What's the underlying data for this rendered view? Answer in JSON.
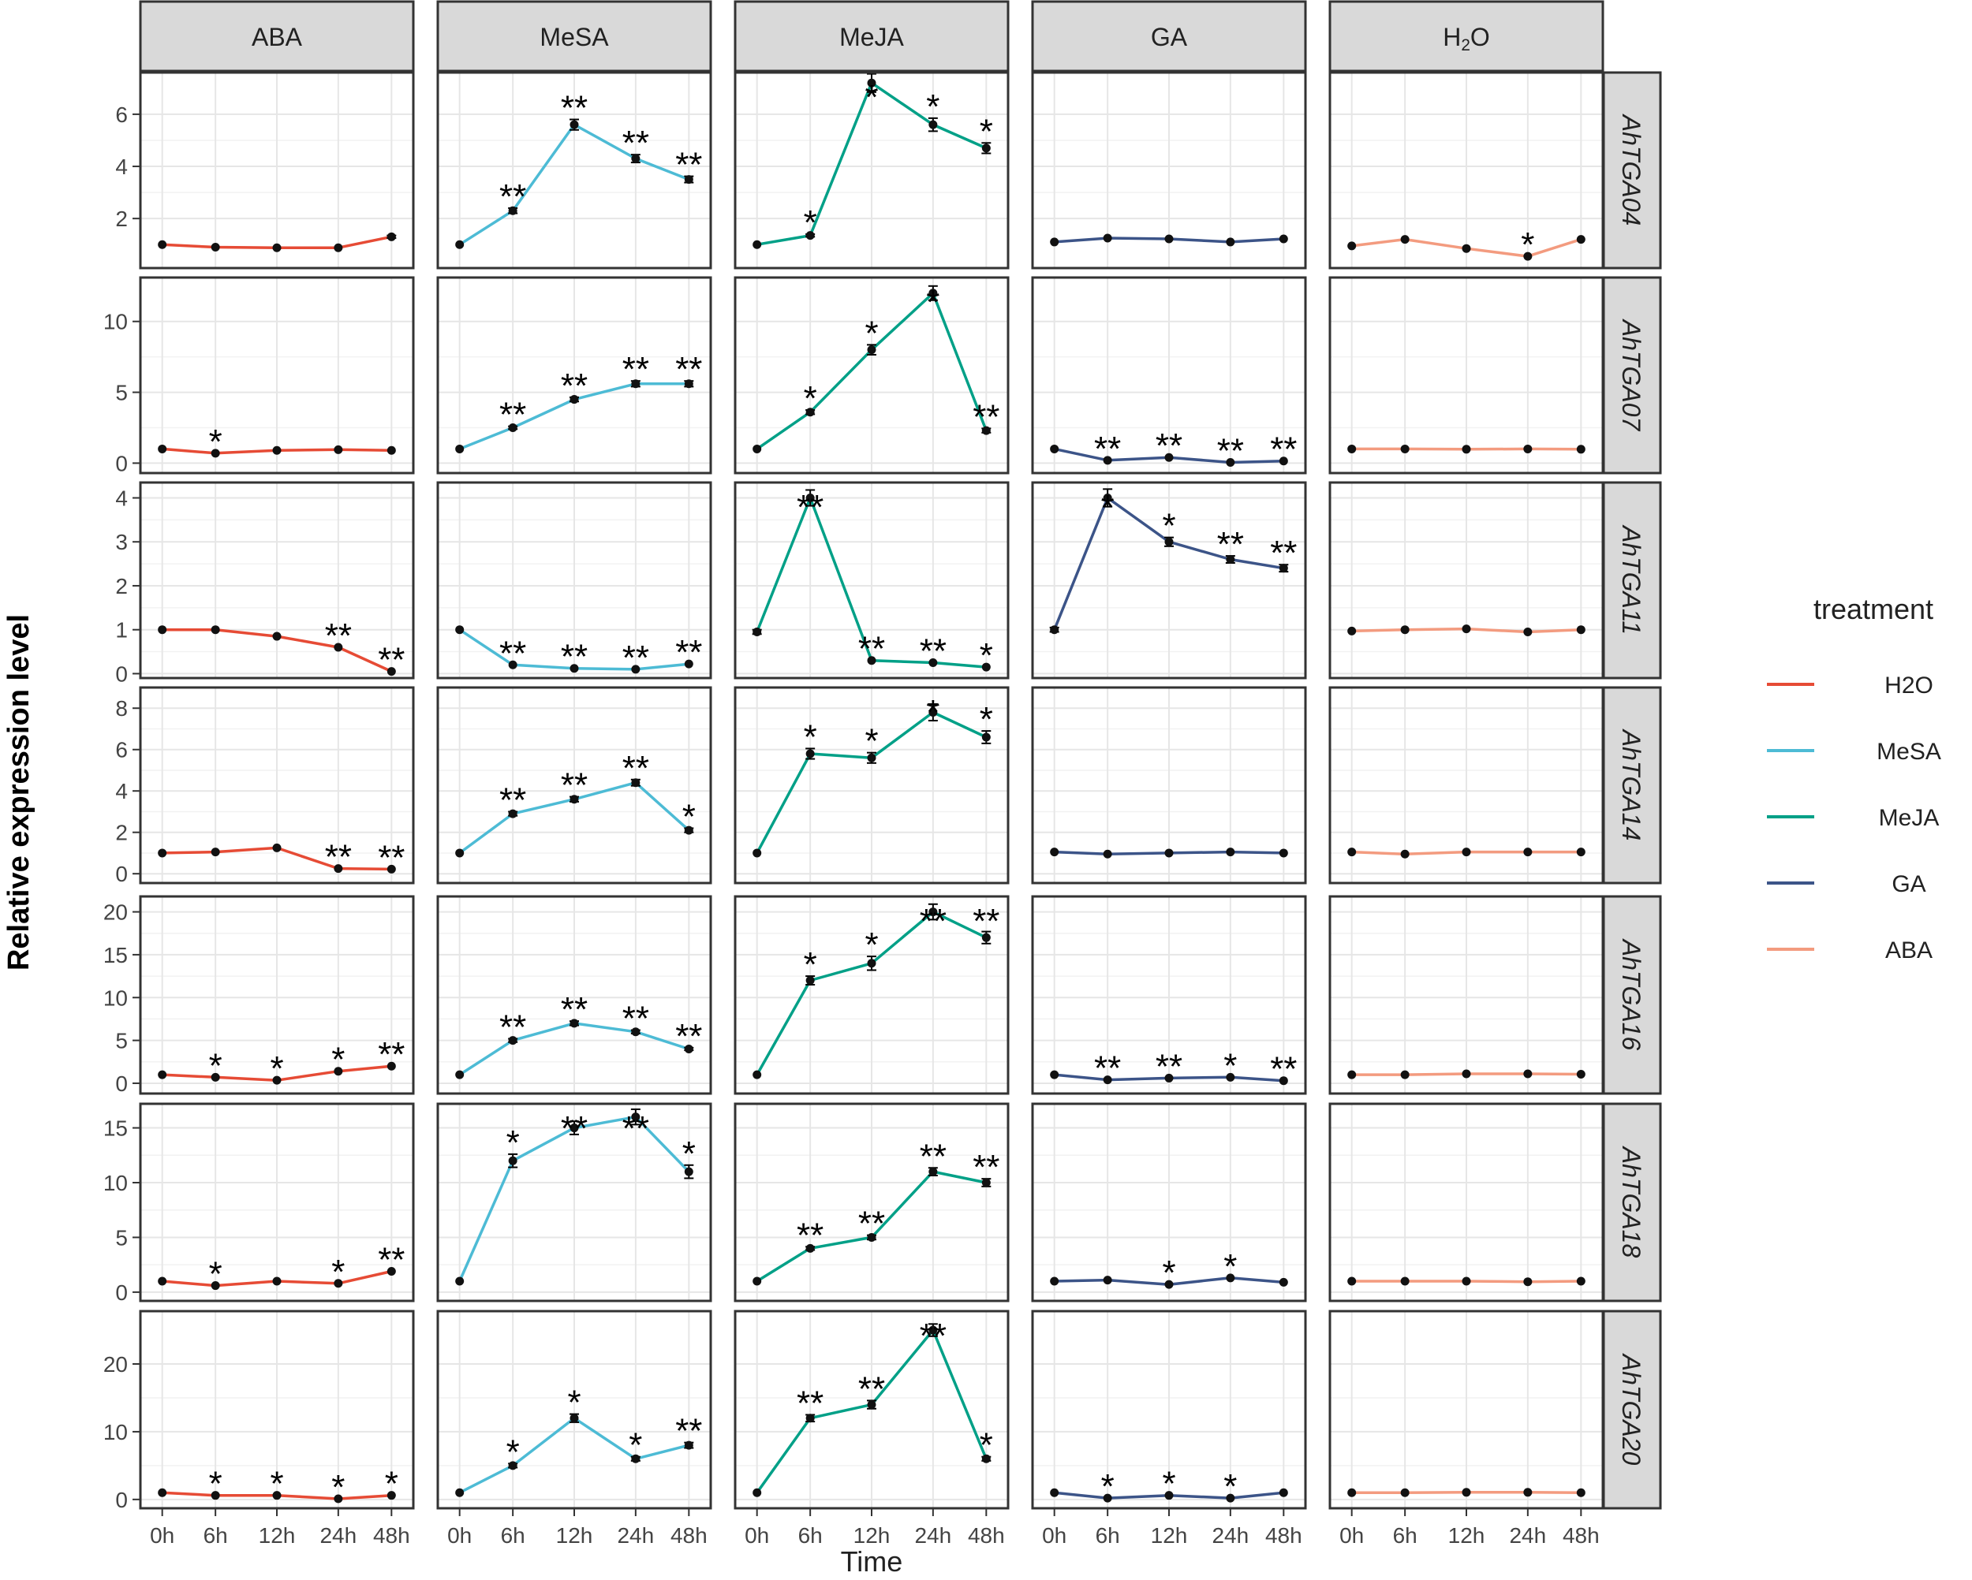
{
  "chart_data": {
    "type": "line",
    "layout": "facet-grid",
    "xlabel": "Time",
    "ylabel": "Relative expression level",
    "x": [
      "0h",
      "6h",
      "12h",
      "24h",
      "48h"
    ],
    "columns": [
      "ABA",
      "MeSA",
      "MeJA",
      "GA",
      "H2O"
    ],
    "rows": [
      "AhTGA04",
      "AhTGA07",
      "AhTGA11",
      "AhTGA14",
      "AhTGA16",
      "AhTGA18",
      "AhTGA20"
    ],
    "legend": {
      "title": "treatment",
      "placement": "right",
      "entries": [
        {
          "label": "H2O",
          "color": "#e64b35"
        },
        {
          "label": "MeSA",
          "color": "#4dbbd5"
        },
        {
          "label": "MeJA",
          "color": "#00a087"
        },
        {
          "label": "GA",
          "color": "#3c5488"
        },
        {
          "label": "ABA",
          "color": "#f39b7f"
        }
      ]
    },
    "column_colors": [
      "#e64b35",
      "#4dbbd5",
      "#00a087",
      "#3c5488",
      "#f39b7f"
    ],
    "row_axes": [
      {
        "ylim": [
          0.1,
          7.6
        ],
        "ticks": [
          2,
          4,
          6
        ]
      },
      {
        "ylim": [
          -0.7,
          13.1
        ],
        "ticks": [
          0,
          5,
          10
        ]
      },
      {
        "ylim": [
          -0.1,
          4.35
        ],
        "ticks": [
          0,
          1,
          2,
          3,
          4
        ]
      },
      {
        "ylim": [
          -0.45,
          9.0
        ],
        "ticks": [
          0,
          2,
          4,
          6,
          8
        ]
      },
      {
        "ylim": [
          -1.2,
          21.8
        ],
        "ticks": [
          0,
          5,
          10,
          15,
          20
        ]
      },
      {
        "ylim": [
          -0.8,
          17.2
        ],
        "ticks": [
          0,
          5,
          10,
          15
        ]
      },
      {
        "ylim": [
          -1.3,
          27.8
        ],
        "ticks": [
          0,
          10,
          20
        ]
      }
    ],
    "series": [
      [
        {
          "values": [
            1.0,
            0.9,
            0.88,
            0.88,
            1.3
          ],
          "errors": [
            0,
            0,
            0,
            0,
            0.05
          ],
          "marks": [
            "",
            "",
            "",
            "",
            ""
          ]
        },
        {
          "values": [
            1.0,
            2.3,
            5.6,
            4.3,
            3.5
          ],
          "errors": [
            0,
            0.1,
            0.2,
            0.15,
            0.12
          ],
          "marks": [
            "",
            "**",
            "**",
            "**",
            "**"
          ]
        },
        {
          "values": [
            1.0,
            1.35,
            7.2,
            5.6,
            4.7
          ],
          "errors": [
            0,
            0.05,
            0.35,
            0.25,
            0.2
          ],
          "marks": [
            "",
            "*",
            "*",
            "*",
            "*"
          ]
        },
        {
          "values": [
            1.1,
            1.25,
            1.22,
            1.1,
            1.22
          ],
          "errors": [
            0,
            0,
            0,
            0,
            0
          ],
          "marks": [
            "",
            "",
            "",
            "",
            ""
          ]
        },
        {
          "values": [
            0.95,
            1.2,
            0.85,
            0.55,
            1.2
          ],
          "errors": [
            0,
            0,
            0,
            0,
            0
          ],
          "marks": [
            "",
            "",
            "",
            "*",
            ""
          ]
        }
      ],
      [
        {
          "values": [
            1.0,
            0.7,
            0.9,
            0.95,
            0.9
          ],
          "errors": [
            0,
            0,
            0,
            0,
            0
          ],
          "marks": [
            "",
            "*",
            "",
            "",
            ""
          ]
        },
        {
          "values": [
            1.0,
            2.5,
            4.5,
            5.6,
            5.6
          ],
          "errors": [
            0,
            0.1,
            0.15,
            0.2,
            0.2
          ],
          "marks": [
            "",
            "**",
            "**",
            "**",
            "**"
          ]
        },
        {
          "values": [
            1.0,
            3.6,
            8.0,
            12.0,
            2.3
          ],
          "errors": [
            0,
            0.15,
            0.35,
            0.5,
            0.15
          ],
          "marks": [
            "",
            "*",
            "*",
            "*",
            "**"
          ]
        },
        {
          "values": [
            1.0,
            0.2,
            0.4,
            0.05,
            0.15
          ],
          "errors": [
            0,
            0,
            0,
            0,
            0
          ],
          "marks": [
            "",
            "**",
            "**",
            "**",
            "**"
          ]
        },
        {
          "values": [
            1.0,
            1.0,
            0.98,
            1.0,
            0.98
          ],
          "errors": [
            0,
            0,
            0,
            0,
            0
          ],
          "marks": [
            "",
            "",
            "",
            "",
            ""
          ]
        }
      ],
      [
        {
          "values": [
            1.0,
            1.0,
            0.85,
            0.6,
            0.05
          ],
          "errors": [
            0,
            0,
            0,
            0,
            0
          ],
          "marks": [
            "",
            "",
            "",
            "**",
            "**"
          ]
        },
        {
          "values": [
            1.0,
            0.2,
            0.12,
            0.1,
            0.22
          ],
          "errors": [
            0,
            0,
            0,
            0,
            0
          ],
          "marks": [
            "",
            "**",
            "**",
            "**",
            "**"
          ]
        },
        {
          "values": [
            0.95,
            4.0,
            0.3,
            0.25,
            0.15
          ],
          "errors": [
            0.05,
            0.18,
            0,
            0,
            0
          ],
          "marks": [
            "",
            "**",
            "**",
            "**",
            "*"
          ]
        },
        {
          "values": [
            1.0,
            4.0,
            3.0,
            2.6,
            2.4
          ],
          "errors": [
            0.05,
            0.2,
            0.1,
            0.08,
            0.08
          ],
          "marks": [
            "",
            "*",
            "*",
            "**",
            "**"
          ]
        },
        {
          "values": [
            0.97,
            1.0,
            1.02,
            0.95,
            1.0
          ],
          "errors": [
            0,
            0,
            0,
            0,
            0
          ],
          "marks": [
            "",
            "",
            "",
            "",
            ""
          ]
        }
      ],
      [
        {
          "values": [
            1.0,
            1.05,
            1.25,
            0.25,
            0.22
          ],
          "errors": [
            0,
            0,
            0,
            0,
            0
          ],
          "marks": [
            "",
            "",
            "",
            "**",
            "**"
          ]
        },
        {
          "values": [
            1.0,
            2.9,
            3.6,
            4.4,
            2.1
          ],
          "errors": [
            0,
            0.1,
            0.12,
            0.15,
            0.1
          ],
          "marks": [
            "",
            "**",
            "**",
            "**",
            "*"
          ]
        },
        {
          "values": [
            1.0,
            5.8,
            5.6,
            7.8,
            6.6
          ],
          "errors": [
            0,
            0.25,
            0.25,
            0.4,
            0.3
          ],
          "marks": [
            "",
            "*",
            "*",
            "*",
            "*"
          ]
        },
        {
          "values": [
            1.05,
            0.95,
            1.0,
            1.05,
            1.0
          ],
          "errors": [
            0,
            0,
            0,
            0,
            0
          ],
          "marks": [
            "",
            "",
            "",
            "",
            ""
          ]
        },
        {
          "values": [
            1.05,
            0.95,
            1.05,
            1.05,
            1.05
          ],
          "errors": [
            0,
            0,
            0,
            0,
            0
          ],
          "marks": [
            "",
            "",
            "",
            "",
            ""
          ]
        }
      ],
      [
        {
          "values": [
            1.0,
            0.7,
            0.35,
            1.4,
            2.0
          ],
          "errors": [
            0,
            0,
            0,
            0,
            0
          ],
          "marks": [
            "",
            "*",
            "*",
            "*",
            "**"
          ]
        },
        {
          "values": [
            1.0,
            5.0,
            7.0,
            6.0,
            4.0
          ],
          "errors": [
            0,
            0.2,
            0.25,
            0.2,
            0.15
          ],
          "marks": [
            "",
            "**",
            "**",
            "**",
            "**"
          ]
        },
        {
          "values": [
            1.0,
            12.0,
            14.0,
            20.0,
            17.0
          ],
          "errors": [
            0,
            0.5,
            0.8,
            0.9,
            0.7
          ],
          "marks": [
            "",
            "*",
            "*",
            "**",
            "**"
          ]
        },
        {
          "values": [
            1.0,
            0.4,
            0.6,
            0.7,
            0.3
          ],
          "errors": [
            0,
            0,
            0,
            0,
            0
          ],
          "marks": [
            "",
            "**",
            "**",
            "*",
            "**"
          ]
        },
        {
          "values": [
            1.0,
            1.0,
            1.1,
            1.1,
            1.05
          ],
          "errors": [
            0,
            0,
            0,
            0,
            0
          ],
          "marks": [
            "",
            "",
            "",
            "",
            ""
          ]
        }
      ],
      [
        {
          "values": [
            1.0,
            0.6,
            1.0,
            0.8,
            1.9
          ],
          "errors": [
            0,
            0,
            0,
            0,
            0
          ],
          "marks": [
            "",
            "*",
            "",
            "*",
            "**"
          ]
        },
        {
          "values": [
            1.0,
            12.0,
            15.0,
            16.0,
            11.0
          ],
          "errors": [
            0,
            0.6,
            0.6,
            0.7,
            0.6
          ],
          "marks": [
            "",
            "*",
            "**",
            "**",
            "*"
          ]
        },
        {
          "values": [
            1.0,
            4.0,
            5.0,
            11.0,
            10.0
          ],
          "errors": [
            0,
            0.15,
            0.2,
            0.35,
            0.35
          ],
          "marks": [
            "",
            "**",
            "**",
            "**",
            "**"
          ]
        },
        {
          "values": [
            1.0,
            1.1,
            0.7,
            1.3,
            0.9
          ],
          "errors": [
            0,
            0,
            0,
            0,
            0
          ],
          "marks": [
            "",
            "",
            "*",
            "*",
            ""
          ]
        },
        {
          "values": [
            1.0,
            1.0,
            1.0,
            0.95,
            1.0
          ],
          "errors": [
            0,
            0,
            0,
            0,
            0
          ],
          "marks": [
            "",
            "",
            "",
            "",
            ""
          ]
        }
      ],
      [
        {
          "values": [
            1.0,
            0.6,
            0.6,
            0.1,
            0.6
          ],
          "errors": [
            0,
            0,
            0,
            0,
            0
          ],
          "marks": [
            "",
            "*",
            "*",
            "*",
            "*"
          ]
        },
        {
          "values": [
            1.0,
            5.0,
            12.0,
            6.0,
            8.0
          ],
          "errors": [
            0,
            0.3,
            0.6,
            0.3,
            0.4
          ],
          "marks": [
            "",
            "*",
            "*",
            "*",
            "**"
          ]
        },
        {
          "values": [
            1.0,
            12.0,
            14.0,
            25.0,
            6.0
          ],
          "errors": [
            0,
            0.5,
            0.6,
            0.9,
            0.3
          ],
          "marks": [
            "",
            "**",
            "**",
            "**",
            "*"
          ]
        },
        {
          "values": [
            1.0,
            0.2,
            0.6,
            0.2,
            1.0
          ],
          "errors": [
            0,
            0,
            0,
            0,
            0
          ],
          "marks": [
            "",
            "*",
            "*",
            "*",
            ""
          ]
        },
        {
          "values": [
            1.0,
            1.0,
            1.05,
            1.05,
            1.0
          ],
          "errors": [
            0,
            0,
            0,
            0,
            0
          ],
          "marks": [
            "",
            "",
            "",
            "",
            ""
          ]
        }
      ]
    ]
  }
}
